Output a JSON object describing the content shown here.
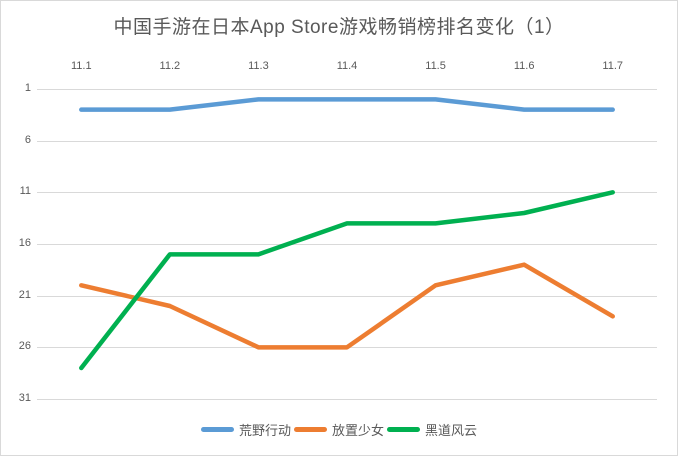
{
  "window": {
    "background_color": "#FFFFFF",
    "border_color": "#D9D9D9"
  },
  "chart_data": {
    "type": "line",
    "title": "中国手游在日本App Store游戏畅销榜排名变化（1）",
    "title_color": "#595959",
    "xlabel": "",
    "ylabel": "",
    "x": [
      "11.1",
      "11.2",
      "11.3",
      "11.4",
      "11.5",
      "11.6",
      "11.7"
    ],
    "x_axis_position": "top",
    "y_ticks": [
      1,
      6,
      11,
      16,
      21,
      26,
      31
    ],
    "ylim": [
      1,
      31
    ],
    "y_axis_reversed": true,
    "grid": true,
    "grid_color": "#D9D9D9",
    "tick_label_color": "#595959",
    "legend_position": "bottom",
    "series": [
      {
        "name": "荒野行动",
        "color": "#5B9BD5",
        "values": [
          3,
          3,
          2,
          2,
          2,
          3,
          3
        ]
      },
      {
        "name": "放置少女",
        "color": "#ED7D31",
        "values": [
          20,
          22,
          26,
          26,
          20,
          18,
          23
        ]
      },
      {
        "name": "黑道风云",
        "color": "#00B050",
        "values": [
          28,
          17,
          17,
          14,
          14,
          13,
          11
        ]
      }
    ]
  }
}
